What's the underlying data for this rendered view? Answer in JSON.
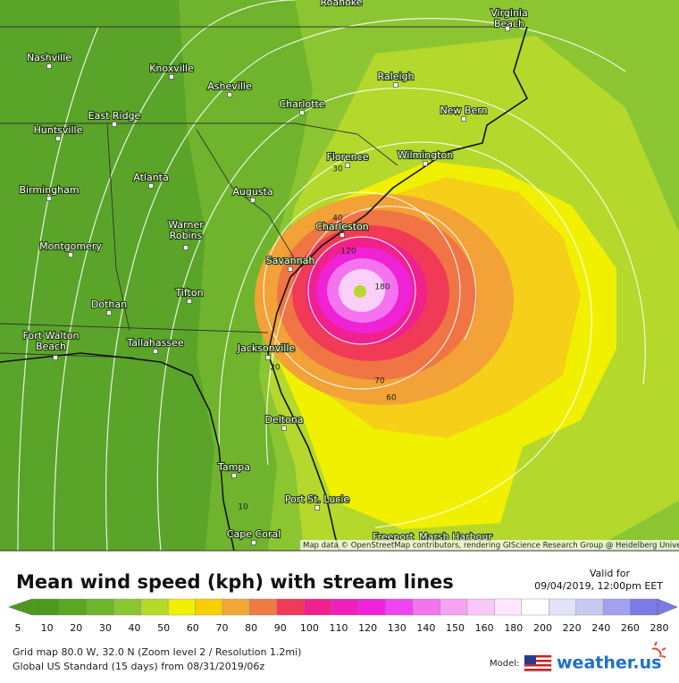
{
  "map": {
    "cities": [
      {
        "name": "Roanoke"
      },
      {
        "name": [
          "Virginia",
          "Beach"
        ]
      },
      {
        "name": "Nashville"
      },
      {
        "name": "Knoxville"
      },
      {
        "name": "Raleigh"
      },
      {
        "name": "Asheville"
      },
      {
        "name": "Charlotte"
      },
      {
        "name": "New Bern"
      },
      {
        "name": "East Ridge"
      },
      {
        "name": "Huntsville"
      },
      {
        "name": "Florence"
      },
      {
        "name": "Wilmington"
      },
      {
        "name": "Atlanta"
      },
      {
        "name": "Birmingham"
      },
      {
        "name": "Augusta"
      },
      {
        "name": "Charleston"
      },
      {
        "name": [
          "Warner",
          "Robins"
        ]
      },
      {
        "name": "Montgomery"
      },
      {
        "name": "Savannah"
      },
      {
        "name": "Tifton"
      },
      {
        "name": "Dothan"
      },
      {
        "name": [
          "Fort Walton",
          "Beach"
        ]
      },
      {
        "name": "Tallahassee"
      },
      {
        "name": "Jacksonville"
      },
      {
        "name": "Deltona"
      },
      {
        "name": "Tampa"
      },
      {
        "name": "Port St. Lucie"
      },
      {
        "name": "Cape Coral"
      },
      {
        "name": "Freeport"
      },
      {
        "name": "Marsh Harbour"
      }
    ],
    "contour_labels": [
      "30",
      "40",
      "120",
      "180",
      "20",
      "70",
      "60",
      "10"
    ],
    "attribution": "Map data © OpenStreetMap contributors, rendering GIScience Research Group @ Heidelberg University"
  },
  "header": {
    "title": "Mean wind speed (kph) with stream lines",
    "valid_label": "Valid for",
    "valid_time": "09/04/2019, 12:00pm EET"
  },
  "legend": {
    "labels": [
      "5",
      "10",
      "20",
      "30",
      "40",
      "50",
      "60",
      "70",
      "80",
      "90",
      "100",
      "110",
      "120",
      "130",
      "140",
      "150",
      "160",
      "180",
      "200",
      "220",
      "240",
      "260",
      "280"
    ],
    "colors": [
      "#4c9a1c",
      "#5aa722",
      "#6db52a",
      "#8cc532",
      "#b5da2a",
      "#f0f000",
      "#f6d000",
      "#f2a834",
      "#f07a44",
      "#f03a56",
      "#f0208e",
      "#f020bc",
      "#f022e0",
      "#f044f0",
      "#f474f0",
      "#f8a2f2",
      "#fac8f8",
      "#ffe8ff",
      "#ffffff",
      "#e2e2f8",
      "#c8c8f2",
      "#a2a2f0",
      "#7a7ae8"
    ]
  },
  "footer": {
    "line1": "Grid map 80.0 W, 32.0 N (Zoom level 2 / Resolution 1.2mi)",
    "line2": "Global US Standard (15 days) from 08/31/2019/06z",
    "model_label": "Model:",
    "logo": "weather.us"
  }
}
